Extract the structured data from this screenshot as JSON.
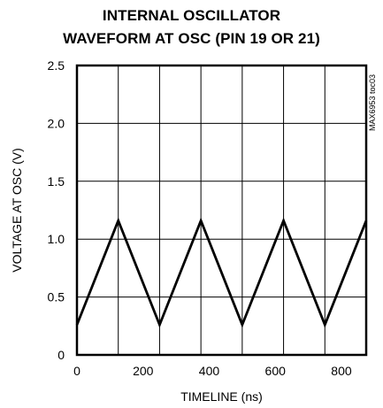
{
  "chart_data": {
    "type": "line",
    "title_line1": "INTERNAL OSCILLATOR",
    "title_line2": "WAVEFORM AT OSC (PIN 19 OR 21)",
    "xlabel": "TIMELINE (ns)",
    "ylabel": "VOLTAGE AT OSC (V)",
    "figure_id": "MAX6953 toc03",
    "xlim": [
      0,
      875
    ],
    "ylim": [
      0,
      2.5
    ],
    "x_ticks": [
      0,
      200,
      400,
      600,
      800
    ],
    "y_ticks": [
      "0",
      "0.5",
      "1.0",
      "1.5",
      "2.0",
      "2.5"
    ],
    "x_grid": [
      125,
      250,
      375,
      500,
      625,
      750
    ],
    "y_grid": [
      0.5,
      1.0,
      1.5,
      2.0
    ],
    "grid": true,
    "series": [
      {
        "x": [
          0,
          125,
          250,
          375,
          500,
          625,
          750,
          875
        ],
        "y": [
          0.26,
          1.16,
          0.26,
          1.16,
          0.26,
          1.16,
          0.26,
          1.16
        ]
      }
    ]
  }
}
